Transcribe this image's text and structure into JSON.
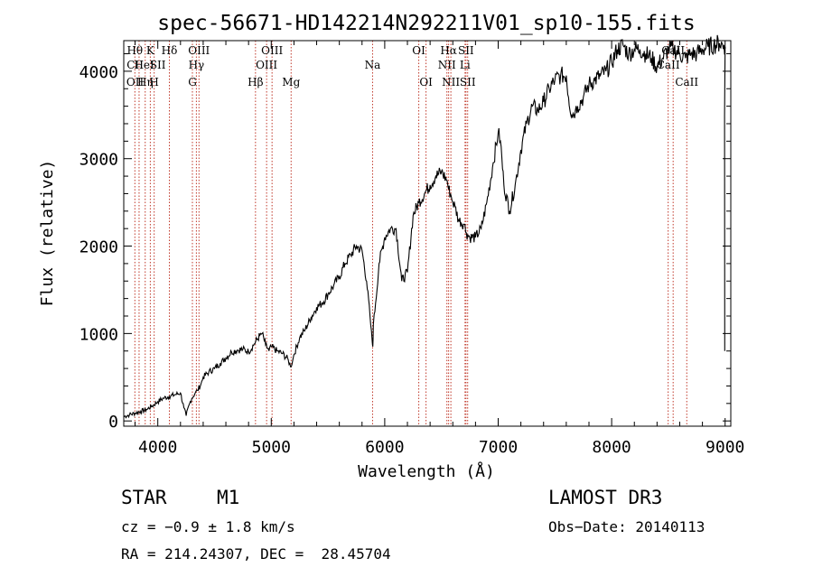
{
  "chart_data": {
    "type": "line",
    "title": "spec-56671-HD142214N292211V01_sp10-155.fits",
    "xlabel": "Wavelength (Å)",
    "ylabel": "Flux (relative)",
    "xlim": [
      3700,
      9050
    ],
    "ylim": [
      -60,
      4350
    ],
    "xticks": [
      4000,
      5000,
      6000,
      7000,
      8000,
      9000
    ],
    "yticks": [
      0,
      1000,
      2000,
      3000,
      4000
    ],
    "grid": false,
    "series": [
      {
        "name": "flux",
        "x": [
          3700,
          3750,
          3800,
          3850,
          3900,
          3950,
          4000,
          4050,
          4100,
          4150,
          4200,
          4230,
          4250,
          4280,
          4300,
          4330,
          4350,
          4380,
          4400,
          4450,
          4500,
          4550,
          4600,
          4650,
          4700,
          4750,
          4800,
          4850,
          4900,
          4920,
          4950,
          4980,
          5000,
          5050,
          5100,
          5150,
          5170,
          5190,
          5200,
          5250,
          5300,
          5350,
          5400,
          5450,
          5500,
          5550,
          5600,
          5650,
          5700,
          5750,
          5800,
          5840,
          5870,
          5890,
          5895,
          5900,
          5920,
          5950,
          6000,
          6050,
          6100,
          6150,
          6200,
          6250,
          6300,
          6350,
          6400,
          6450,
          6500,
          6550,
          6563,
          6580,
          6600,
          6620,
          6650,
          6700,
          6720,
          6750,
          6800,
          6850,
          6900,
          6950,
          7000,
          7020,
          7050,
          7100,
          7150,
          7200,
          7250,
          7300,
          7350,
          7400,
          7450,
          7500,
          7550,
          7600,
          7620,
          7650,
          7680,
          7700,
          7750,
          7800,
          7850,
          7900,
          7950,
          8000,
          8050,
          8100,
          8150,
          8200,
          8250,
          8300,
          8350,
          8400,
          8450,
          8500,
          8550,
          8600,
          8650,
          8700,
          8750,
          8800,
          8850,
          8900,
          8950,
          8990,
          9000
        ],
        "y": [
          50,
          70,
          90,
          110,
          130,
          170,
          220,
          260,
          280,
          300,
          320,
          150,
          60,
          200,
          260,
          320,
          350,
          420,
          500,
          560,
          600,
          660,
          720,
          790,
          810,
          820,
          790,
          880,
          980,
          1000,
          870,
          800,
          850,
          800,
          770,
          700,
          620,
          700,
          760,
          950,
          1050,
          1180,
          1300,
          1350,
          1450,
          1550,
          1650,
          1800,
          1900,
          2000,
          1950,
          1600,
          1200,
          900,
          850,
          1100,
          1350,
          1800,
          2100,
          2200,
          2200,
          1600,
          1700,
          2350,
          2500,
          2600,
          2700,
          2800,
          2850,
          2750,
          2650,
          2600,
          2500,
          2450,
          2300,
          2250,
          2150,
          2100,
          2100,
          2200,
          2500,
          2900,
          3300,
          3200,
          2700,
          2400,
          2700,
          3100,
          3400,
          3600,
          3550,
          3650,
          3800,
          3900,
          3950,
          3950,
          3700,
          3500,
          3550,
          3600,
          3700,
          3850,
          3900,
          3950,
          4000,
          4100,
          4250,
          4300,
          4200,
          4250,
          4250,
          4200,
          4150,
          4050,
          4150,
          4250,
          4250,
          4200,
          4150,
          4200,
          4200,
          4250,
          4280,
          4300,
          4320,
          4300,
          4280
        ]
      }
    ],
    "annotations": [
      {
        "label": "Hθ",
        "x": 3798,
        "row": 1
      },
      {
        "label": "CII",
        "x": 3800,
        "row": 2
      },
      {
        "label": "OII",
        "x": 3800,
        "row": 3
      },
      {
        "label": "K",
        "x": 3934,
        "row": 1
      },
      {
        "label": "HeI",
        "x": 3880,
        "row": 2
      },
      {
        "label": "Hη",
        "x": 3890,
        "row": 3
      },
      {
        "label": "Hδ",
        "x": 4102,
        "row": 1
      },
      {
        "label": "SII",
        "x": 4000,
        "row": 2
      },
      {
        "label": "H",
        "x": 3968,
        "row": 3
      },
      {
        "label": "OIII",
        "x": 4363,
        "row": 1
      },
      {
        "label": "Hγ",
        "x": 4340,
        "row": 2
      },
      {
        "label": "G",
        "x": 4305,
        "row": 3
      },
      {
        "label": "OIII",
        "x": 5007,
        "row": 1
      },
      {
        "label": "OIII",
        "x": 4959,
        "row": 2
      },
      {
        "label": "Hβ",
        "x": 4861,
        "row": 3
      },
      {
        "label": "Mg",
        "x": 5175,
        "row": 3
      },
      {
        "label": "Na",
        "x": 5893,
        "row": 2
      },
      {
        "label": "OI",
        "x": 6300,
        "row": 1
      },
      {
        "label": "OI",
        "x": 6364,
        "row": 3
      },
      {
        "label": "Hα",
        "x": 6563,
        "row": 1
      },
      {
        "label": "SII",
        "x": 6716,
        "row": 1
      },
      {
        "label": "NII",
        "x": 6548,
        "row": 2
      },
      {
        "label": "Li",
        "x": 6708,
        "row": 2
      },
      {
        "label": "NII",
        "x": 6583,
        "row": 3
      },
      {
        "label": "SII",
        "x": 6731,
        "row": 3
      },
      {
        "label": "CaII",
        "x": 8542,
        "row": 1
      },
      {
        "label": "CaII",
        "x": 8498,
        "row": 2
      },
      {
        "label": "CaII",
        "x": 8662,
        "row": 3
      }
    ],
    "line_markers": [
      3798,
      3835,
      3889,
      3934,
      3968,
      4102,
      4305,
      4340,
      4363,
      4861,
      4959,
      5007,
      5175,
      5893,
      6300,
      6364,
      6548,
      6563,
      6583,
      6708,
      6716,
      6731,
      8498,
      8542,
      8662
    ]
  },
  "info": {
    "object_class": "STAR",
    "subclass": "M1",
    "survey": "LAMOST DR3",
    "cz": "cz = −0.9 ± 1.8 km/s",
    "obs_date": "Obs−Date: 20140113",
    "coords": "RA = 214.24307, DEC =  28.45704"
  },
  "colors": {
    "line": "#000000",
    "marker": "#c0392b"
  }
}
